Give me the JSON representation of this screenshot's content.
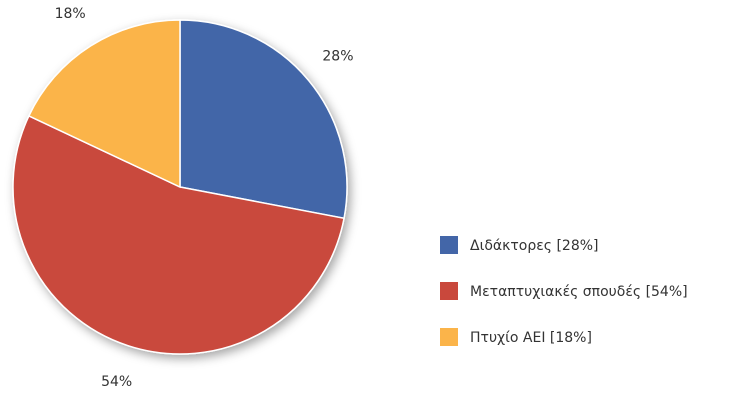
{
  "chart_data": {
    "type": "pie",
    "categories": [
      "Διδάκτορες [28%]",
      "Μεταπτυχιακές σπουδές [54%]",
      "Πτυχίο ΑΕΙ [18%]"
    ],
    "values": [
      28,
      54,
      18
    ],
    "value_labels": [
      "28%",
      "54%",
      "18%"
    ],
    "colors": [
      "#4366a8",
      "#c9483c",
      "#fbb44a"
    ],
    "legend": "right"
  }
}
